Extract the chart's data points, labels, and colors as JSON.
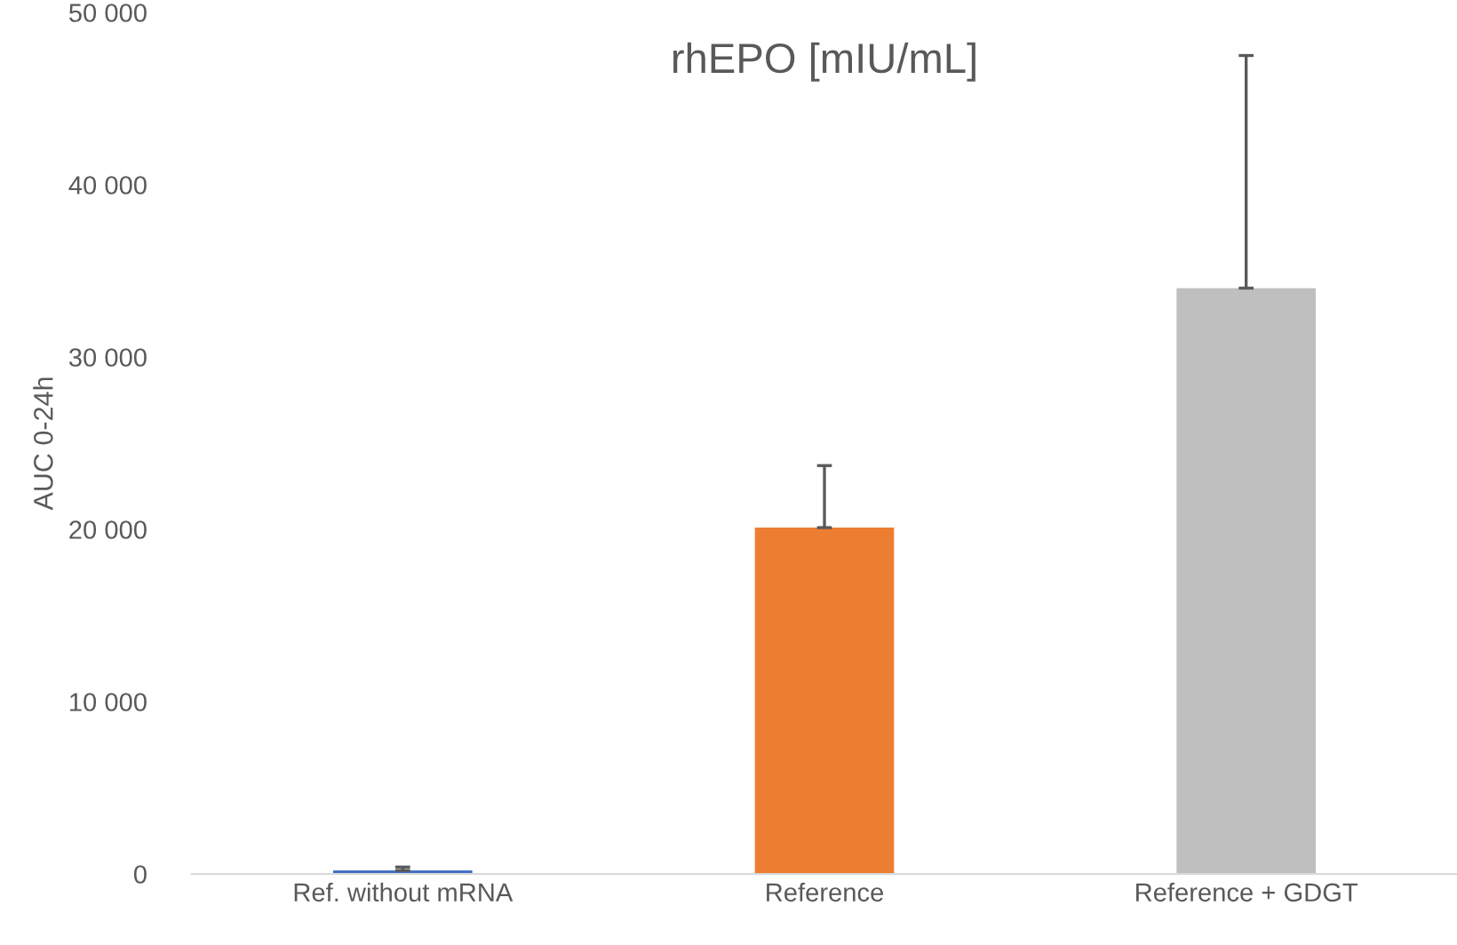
{
  "chart_data": {
    "type": "bar",
    "title": "rhEPO [mIU/mL]",
    "ylabel": "AUC 0-24h",
    "categories": [
      "Ref. without mRNA",
      "Reference",
      "Reference + GDGT"
    ],
    "values": [
      200,
      20100,
      34000
    ],
    "colors": [
      "#4472c4",
      "#ed7d31",
      "#bfbfbf"
    ],
    "errors": [
      [
        200,
        400
      ],
      [
        20100,
        23700
      ],
      [
        34000,
        47500
      ]
    ],
    "ylim": [
      0,
      50000
    ],
    "yticks": [
      {
        "value": 0,
        "label": "0"
      },
      {
        "value": 10000,
        "label": "10 000"
      },
      {
        "value": 20000,
        "label": "20 000"
      },
      {
        "value": 30000,
        "label": "30 000"
      },
      {
        "value": 40000,
        "label": "40 000"
      },
      {
        "value": 50000,
        "label": "50 000"
      }
    ],
    "grid": false
  }
}
